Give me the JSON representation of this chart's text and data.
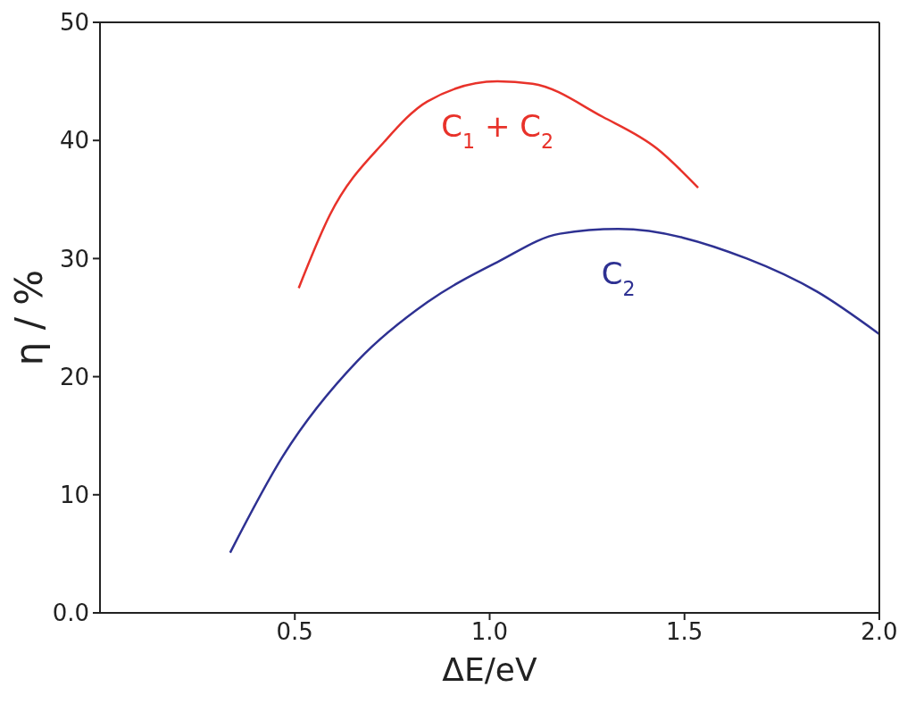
{
  "chart_data": {
    "type": "line",
    "xlabel": "ΔE/eV",
    "ylabel": "η / %",
    "xlim": [
      0,
      2
    ],
    "xticks": [
      0.5,
      {
        "value": 1,
        "label": "1.0"
      },
      1.5,
      {
        "value": 2,
        "label": "2.0"
      }
    ],
    "ylim": [
      0,
      50
    ],
    "yticks": [
      {
        "value": 0,
        "label": "0.0"
      },
      10,
      20,
      30,
      40,
      50
    ],
    "marker": "none",
    "line_style": "solid",
    "series": [
      {
        "name": "C$_{1}$ + C$_{2}$",
        "color": "#e8322a",
        "x": [
          0.51,
          0.59,
          0.73,
          0.84,
          1.02,
          1.11,
          1.29,
          1.43,
          1.535
        ],
        "values": [
          27.5,
          33.7,
          39.9,
          43.3,
          45.0,
          44.8,
          42.0,
          39.3,
          36.0
        ]
      },
      {
        "name": "C$_{2}$",
        "color": "#2e3192",
        "x": [
          0.334,
          0.47,
          0.66,
          0.84,
          1.02,
          1.18,
          1.33,
          1.66,
          1.84,
          2.0
        ],
        "values": [
          5.1,
          13.3,
          21.3,
          26.3,
          29.7,
          32.1,
          32.5,
          30.0,
          27.2,
          23.6
        ]
      }
    ]
  }
}
